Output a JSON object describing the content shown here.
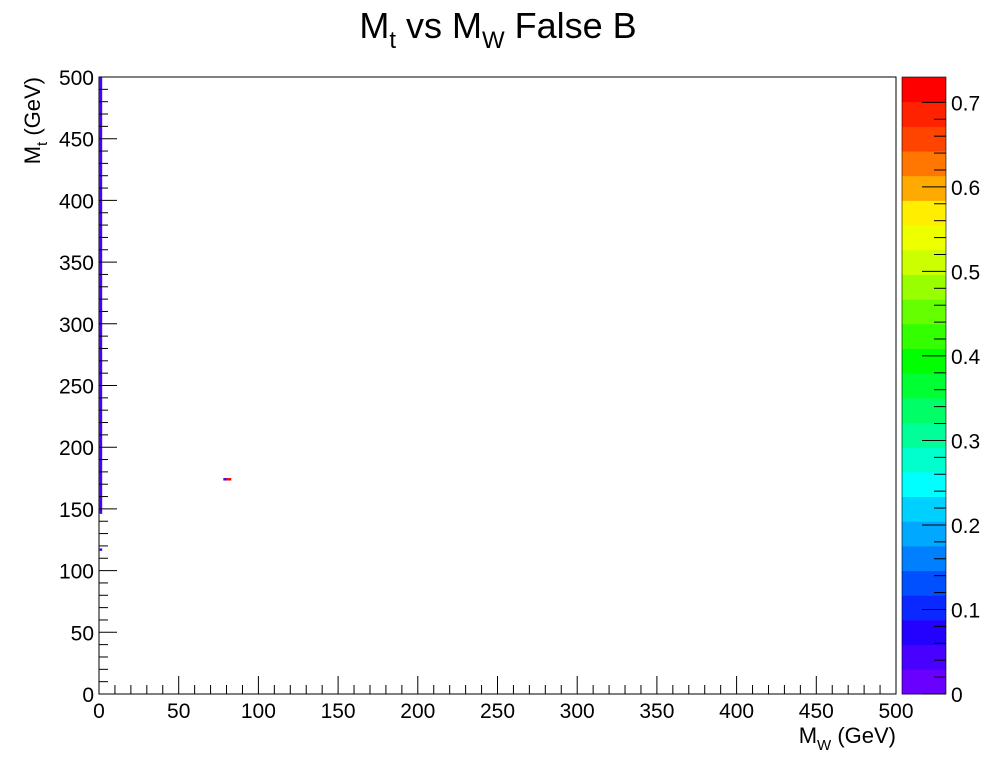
{
  "chart_data": {
    "type": "heatmap",
    "title": {
      "main": "M",
      "sub1": "t",
      "mid": " vs M",
      "sub2": "W",
      "end": " False B"
    },
    "xlabel": {
      "main": "M",
      "sub": "W",
      "rest": " (GeV)"
    },
    "ylabel": {
      "main": "M",
      "sub": "t",
      "rest": " (GeV)"
    },
    "xlim": [
      0,
      500
    ],
    "ylim": [
      0,
      500
    ],
    "x_ticks": [
      "0",
      "50",
      "100",
      "150",
      "200",
      "250",
      "300",
      "350",
      "400",
      "450",
      "500"
    ],
    "y_ticks": [
      "0",
      "50",
      "100",
      "150",
      "200",
      "250",
      "300",
      "350",
      "400",
      "450",
      "500"
    ],
    "colorbar": {
      "range": [
        0,
        0.73
      ],
      "ticks": [
        "0",
        "0.1",
        "0.2",
        "0.3",
        "0.4",
        "0.5",
        "0.6",
        "0.7"
      ],
      "palette": [
        "#6a00ff",
        "#4800ff",
        "#2400ff",
        "#0a28ff",
        "#0050ff",
        "#0080ff",
        "#00a8ff",
        "#00d0ff",
        "#00ffff",
        "#00ffcc",
        "#00ff99",
        "#00ff66",
        "#00ff33",
        "#00ff00",
        "#33ff00",
        "#66ff00",
        "#99ff00",
        "#ccff00",
        "#eeff00",
        "#ffee00",
        "#ffaa00",
        "#ff7700",
        "#ff4400",
        "#ff2200",
        "#ff0000"
      ]
    },
    "cells": [
      {
        "x0": 0,
        "x1": 2,
        "y0": 146,
        "y1": 500,
        "value": 0.04
      },
      {
        "x0": 0,
        "x1": 2,
        "y0": 116,
        "y1": 118,
        "value": 0.04
      },
      {
        "x0": 78,
        "x1": 80,
        "y0": 173,
        "y1": 175,
        "value": 0.04
      },
      {
        "x0": 80,
        "x1": 83,
        "y0": 173,
        "y1": 175,
        "value": 0.73
      }
    ],
    "grid": false
  }
}
